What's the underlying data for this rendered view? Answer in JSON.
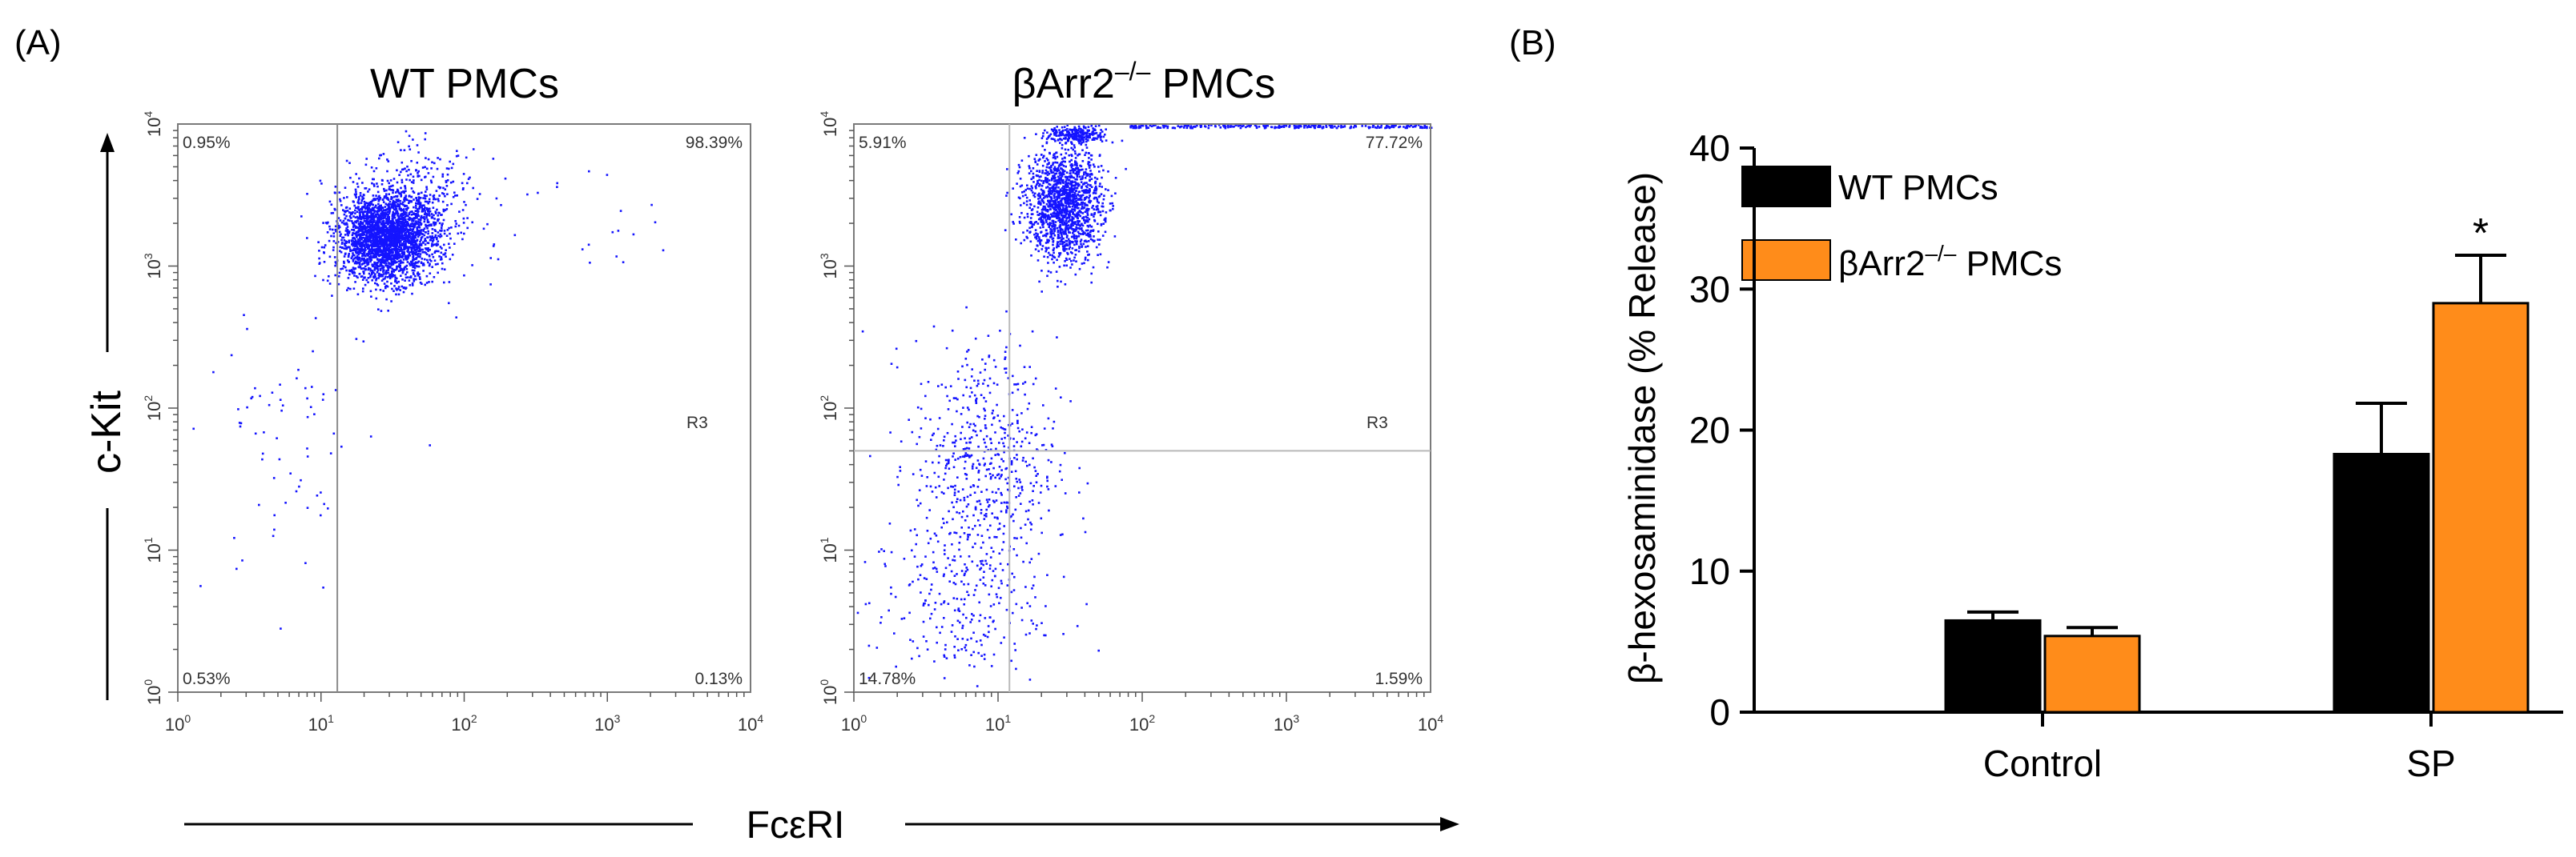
{
  "panel_a": {
    "label": "(A)",
    "y_axis_label": "c-Kit",
    "x_axis_label": "FcεRI",
    "plots": [
      {
        "title": "WT PMCs",
        "region_label": "R3",
        "quadrant_percents": {
          "upper_left": "0.95%",
          "upper_right": "98.39%",
          "lower_left": "0.53%",
          "lower_right": "0.13%"
        },
        "gate": {
          "x": 13,
          "y": null
        },
        "gate_line_color": "#8a8a8a"
      },
      {
        "title": "βArr2",
        "title_sup": "–/–",
        "title_suffix": " PMCs",
        "region_label": "R3",
        "quadrant_percents": {
          "upper_left": "5.91%",
          "upper_right": "77.72%",
          "lower_left": "14.78%",
          "lower_right": "1.59%"
        },
        "gate": {
          "x": 12,
          "y": 50
        },
        "gate_line_color": "#b9b9b9"
      }
    ],
    "axis_ticks": {
      "x": [
        {
          "base": "10",
          "exp": "0"
        },
        {
          "base": "10",
          "exp": "1"
        },
        {
          "base": "10",
          "exp": "2"
        },
        {
          "base": "10",
          "exp": "3"
        },
        {
          "base": "10",
          "exp": "4"
        }
      ],
      "y": [
        {
          "base": "10",
          "exp": "0"
        },
        {
          "base": "10",
          "exp": "1"
        },
        {
          "base": "10",
          "exp": "2"
        },
        {
          "base": "10",
          "exp": "3"
        },
        {
          "base": "10",
          "exp": "4"
        }
      ]
    },
    "dot_color": "#1414ff"
  },
  "chart_data": {
    "type": "bar",
    "label": "(B)",
    "title": "",
    "xlabel": "",
    "ylabel": "β-hexosaminidase (% Release)",
    "categories": [
      "Control",
      "SP"
    ],
    "ylim": [
      0,
      40
    ],
    "yticks": [
      "0",
      "10",
      "20",
      "30",
      "40"
    ],
    "series": [
      {
        "name": "WT PMCs",
        "color": "#000000",
        "values": [
          6.5,
          18.3
        ],
        "errors": [
          0.6,
          3.6
        ]
      },
      {
        "name": "βArr2",
        "name_sup": "–/–",
        "name_suffix": " PMCs",
        "color": "#ff8c1a",
        "values": [
          5.4,
          29.0
        ],
        "errors": [
          0.6,
          3.4
        ]
      }
    ],
    "annotations": [
      {
        "series": 1,
        "category": 1,
        "text": "*"
      }
    ],
    "legend_position": "top-left"
  }
}
